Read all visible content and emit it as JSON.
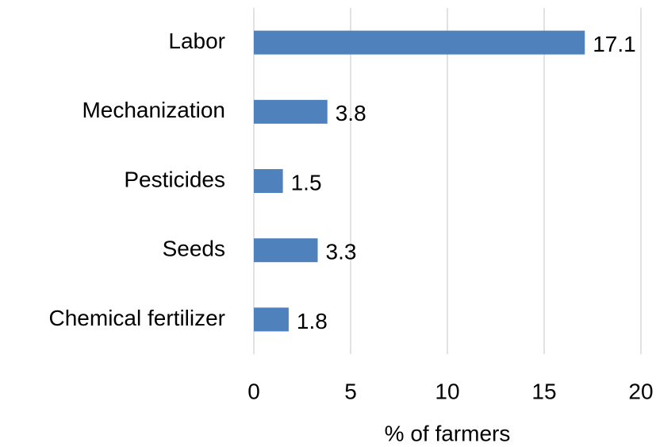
{
  "chart_data": {
    "type": "barh",
    "categories": [
      "Labor",
      "Mechanization",
      "Pesticides",
      "Seeds",
      "Chemical fertilizer"
    ],
    "values": [
      17.1,
      3.8,
      1.5,
      3.3,
      1.8
    ],
    "color": "#4f81bd",
    "xlim": [
      0,
      20
    ],
    "xticks": [
      0,
      5,
      10,
      15,
      20
    ],
    "xlabel": "% of farmers",
    "grid": true
  }
}
